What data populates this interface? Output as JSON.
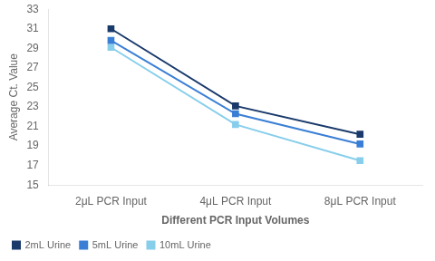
{
  "chart_data": {
    "type": "line",
    "categories": [
      "2μL PCR Input",
      "4μL PCR Input",
      "8μL PCR Input"
    ],
    "series": [
      {
        "name": "2mL Urine",
        "color": "#1a3a6b",
        "marker": "square",
        "values": [
          31.0,
          23.1,
          20.2
        ]
      },
      {
        "name": "5mL Urine",
        "color": "#3a7fd5",
        "marker": "square",
        "values": [
          29.8,
          22.3,
          19.2
        ]
      },
      {
        "name": "10mL Urine",
        "color": "#87ceeb",
        "marker": "square",
        "values": [
          29.1,
          21.2,
          17.5
        ]
      }
    ],
    "xlabel": "Different PCR Input Volumes",
    "ylabel": "Average Ct. Value",
    "ylim": [
      15,
      33
    ],
    "yticks": [
      15,
      17,
      19,
      21,
      23,
      25,
      27,
      29,
      31,
      33
    ],
    "grid": false,
    "legend": "lower left"
  }
}
